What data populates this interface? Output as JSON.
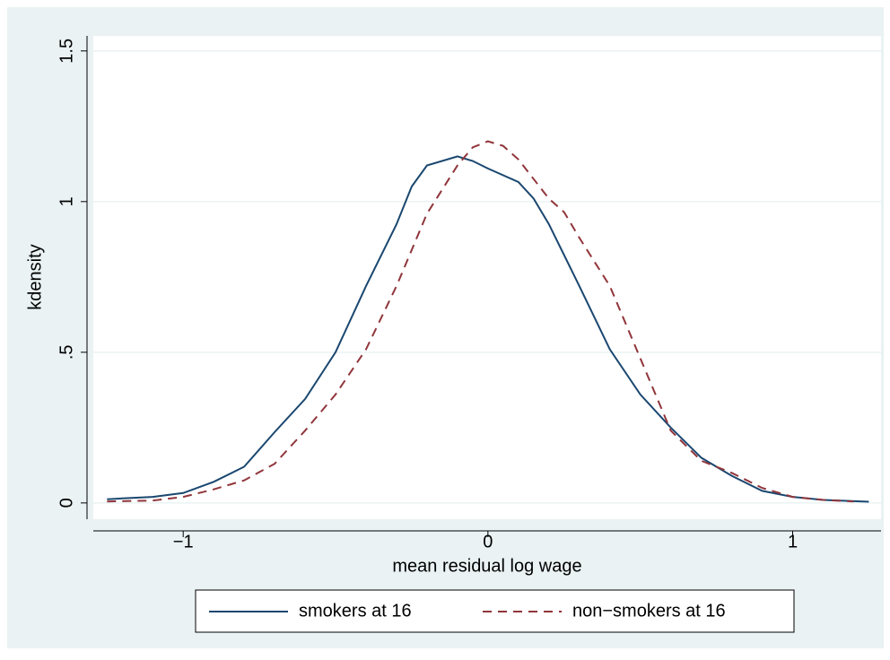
{
  "chart_data": {
    "type": "line",
    "x_label": "mean residual log wage",
    "y_label": "kdensity",
    "xlim": [
      -1.295,
      1.29
    ],
    "ylim": [
      -0.054,
      1.55
    ],
    "xticks": [
      {
        "value": -1,
        "label": "−1"
      },
      0,
      1
    ],
    "yticks": [
      0,
      {
        "value": 0.5,
        "label": ".5"
      },
      1,
      1.5
    ],
    "grid": true,
    "series": [
      {
        "name": "smokers at 16",
        "color": "#1a476f",
        "dash": "solid",
        "x": [
          -1.25,
          -1.2,
          -1.1,
          -1.0,
          -0.9,
          -0.8,
          -0.7,
          -0.6,
          -0.5,
          -0.4,
          -0.3,
          -0.25,
          -0.2,
          -0.1,
          -0.05,
          0,
          0.1,
          0.15,
          0.2,
          0.3,
          0.4,
          0.5,
          0.6,
          0.7,
          0.8,
          0.9,
          1.0,
          1.1,
          1.25
        ],
        "values": [
          0.012,
          0.015,
          0.02,
          0.033,
          0.07,
          0.12,
          0.235,
          0.345,
          0.5,
          0.72,
          0.925,
          1.05,
          1.12,
          1.15,
          1.135,
          1.11,
          1.065,
          1.01,
          0.925,
          0.72,
          0.51,
          0.36,
          0.25,
          0.15,
          0.09,
          0.04,
          0.02,
          0.01,
          0.004
        ]
      },
      {
        "name": "non−smokers at 16",
        "color": "#90353b",
        "dash": "dashed",
        "x": [
          -1.25,
          -1.1,
          -1.0,
          -0.9,
          -0.8,
          -0.7,
          -0.6,
          -0.5,
          -0.4,
          -0.3,
          -0.2,
          -0.1,
          -0.05,
          0,
          0.05,
          0.1,
          0.2,
          0.25,
          0.3,
          0.4,
          0.5,
          0.6,
          0.7,
          0.8,
          0.9,
          1.0,
          1.1,
          1.2
        ],
        "values": [
          0.005,
          0.008,
          0.02,
          0.045,
          0.075,
          0.13,
          0.24,
          0.36,
          0.51,
          0.72,
          0.96,
          1.12,
          1.18,
          1.2,
          1.185,
          1.14,
          1.01,
          0.965,
          0.88,
          0.72,
          0.48,
          0.24,
          0.14,
          0.1,
          0.05,
          0.02,
          0.01,
          0.005
        ]
      }
    ]
  }
}
